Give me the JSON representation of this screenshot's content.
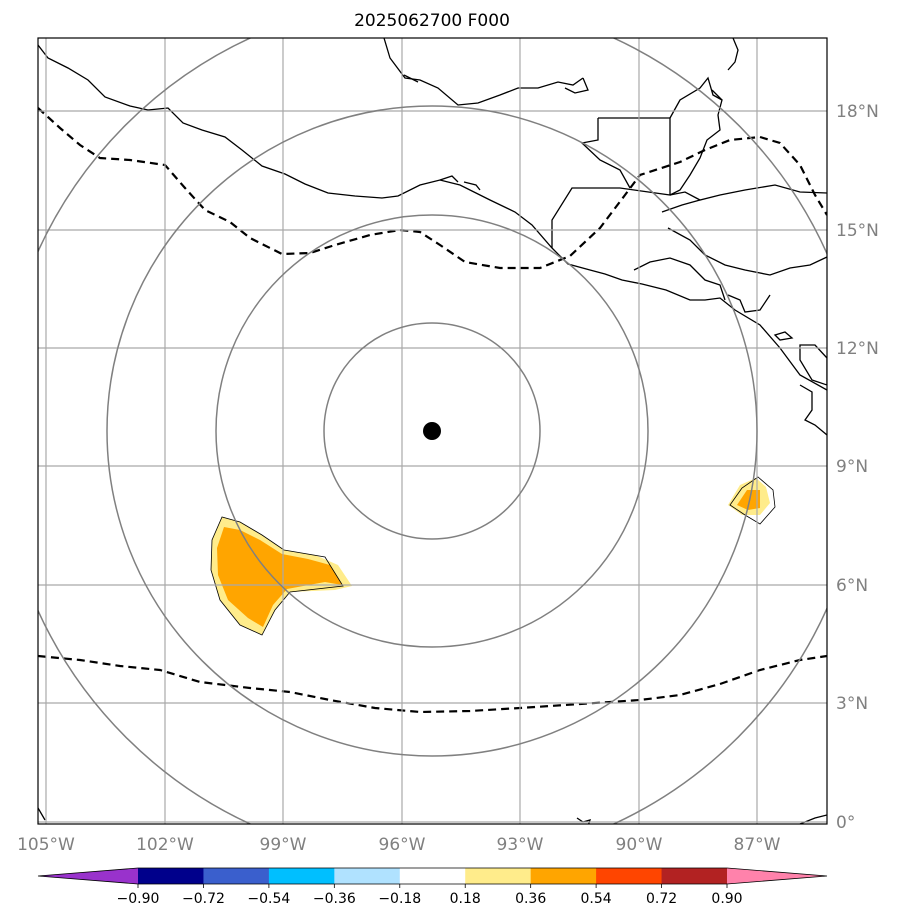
{
  "title": "2025062700 F000",
  "map": {
    "lon_labels": [
      "105°W",
      "102°W",
      "99°W",
      "96°W",
      "93°W",
      "90°W",
      "87°W"
    ],
    "lat_labels": [
      "18°N",
      "15°N",
      "12°N",
      "9°N",
      "6°N",
      "3°N",
      "0°"
    ],
    "storm_center": {
      "lon": -95.3,
      "lat": 9.8
    },
    "range_ring_colors": "#808080",
    "center_marker_color": "#000000"
  },
  "colorbar": {
    "tick_labels": [
      "−0.90",
      "−0.72",
      "−0.54",
      "−0.36",
      "−0.18",
      "0.18",
      "0.36",
      "0.54",
      "0.72",
      "0.90"
    ],
    "colors": [
      "#9932cc",
      "#00008b",
      "#3a5fcd",
      "#00bfff",
      "#b0e2ff",
      "#ffffff",
      "#ffec8b",
      "#ffa500",
      "#ff4500",
      "#b22222",
      "#ff82ab"
    ],
    "extend": "both"
  },
  "shaded_regions": [
    {
      "name": "southwest-anomaly",
      "value_range": "0.18–0.54"
    },
    {
      "name": "southeast-anomaly",
      "value_range": "0.18–0.54"
    }
  ]
}
